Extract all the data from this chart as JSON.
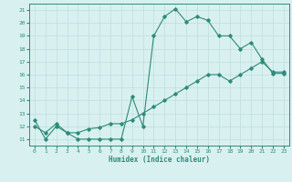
{
  "xlabel": "Humidex (Indice chaleur)",
  "xlim": [
    -0.5,
    23.5
  ],
  "ylim": [
    10.5,
    21.5
  ],
  "xticks": [
    0,
    1,
    2,
    3,
    4,
    5,
    6,
    7,
    8,
    9,
    10,
    11,
    12,
    13,
    14,
    15,
    16,
    17,
    18,
    19,
    20,
    21,
    22,
    23
  ],
  "yticks": [
    11,
    12,
    13,
    14,
    15,
    16,
    17,
    18,
    19,
    20,
    21
  ],
  "line_color": "#2E8B7A",
  "bg_color": "#D9F0F0",
  "grid_color": "#BCDEDE",
  "line1_x": [
    0,
    1,
    2,
    3,
    4,
    5,
    6,
    7,
    8,
    9,
    10,
    11,
    12,
    13,
    14,
    15,
    16,
    17,
    18,
    19,
    20,
    21,
    22,
    23
  ],
  "line1_y": [
    12.5,
    11.0,
    12.0,
    11.5,
    11.0,
    11.0,
    11.0,
    11.0,
    11.0,
    14.3,
    12.0,
    19.0,
    20.5,
    21.1,
    20.1,
    20.5,
    20.2,
    19.0,
    19.0,
    18.0,
    18.5,
    17.2,
    16.1,
    16.1
  ],
  "line2_x": [
    0,
    1,
    2,
    3,
    4,
    5,
    6,
    7,
    8,
    9,
    10,
    11,
    12,
    13,
    14,
    15,
    16,
    17,
    18,
    19,
    20,
    21,
    22,
    23
  ],
  "line2_y": [
    12.0,
    11.5,
    12.2,
    11.5,
    11.5,
    11.8,
    11.9,
    12.2,
    12.2,
    12.5,
    13.0,
    13.5,
    14.0,
    14.5,
    15.0,
    15.5,
    16.0,
    16.0,
    15.5,
    16.0,
    16.5,
    17.0,
    16.2,
    16.2
  ],
  "figwidth": 3.2,
  "figheight": 2.0,
  "dpi": 100
}
